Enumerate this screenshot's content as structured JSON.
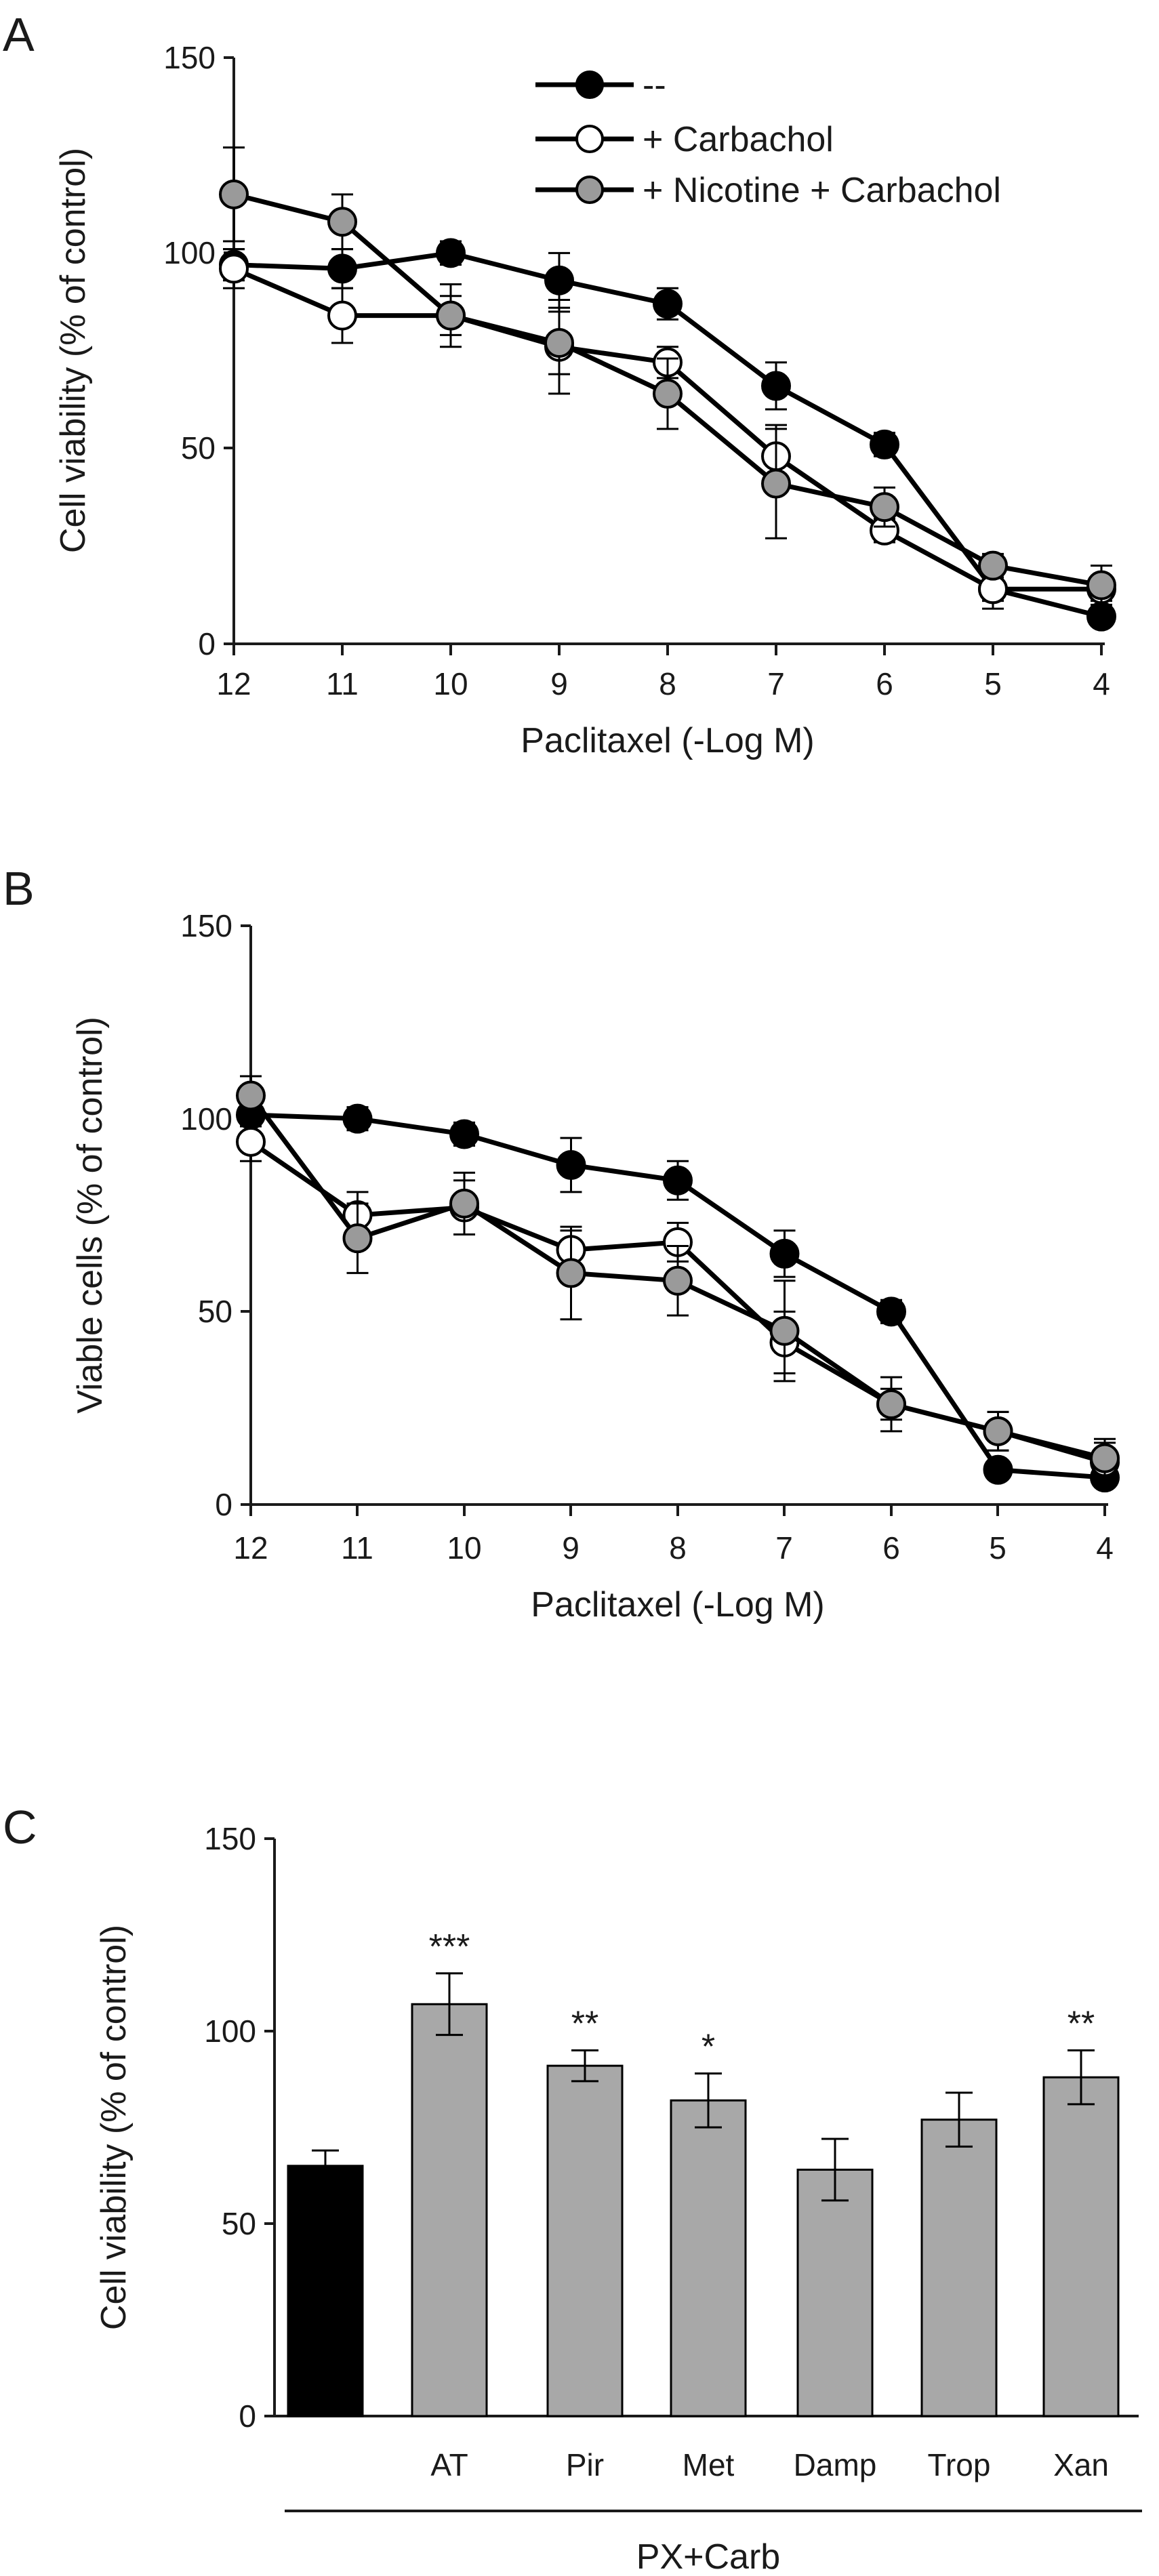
{
  "colors": {
    "black_series": "#000000",
    "white_series": "#ffffff",
    "gray_series": "#9a9a9a",
    "bar_control": "#000000",
    "bar_treated": "#a8a8a8",
    "axis": "#1a1a1a"
  },
  "chart_data": [
    {
      "type": "line",
      "panel": "A",
      "ylabel": "Cell viability (% of control)",
      "xlabel": "Paclitaxel (-Log M)",
      "categories": [
        "12",
        "11",
        "10",
        "9",
        "8",
        "7",
        "6",
        "5",
        "4"
      ],
      "yticks": [
        "0",
        "50",
        "100",
        "150"
      ],
      "ylim": [
        0,
        150
      ],
      "legend": "top-right",
      "series": [
        {
          "name": "--",
          "color": "black_series",
          "values": [
            97,
            96,
            100,
            93,
            87,
            66,
            51,
            14,
            7
          ],
          "errors": [
            4,
            5,
            3,
            7,
            4,
            6,
            3,
            3,
            2
          ]
        },
        {
          "name": "+ Carbachol",
          "color": "white_series",
          "values": [
            96,
            84,
            84,
            76,
            72,
            48,
            29,
            14,
            14
          ],
          "errors": [
            5,
            7,
            8,
            12,
            4,
            8,
            3,
            5,
            3
          ]
        },
        {
          "name": "+ Nicotine + Carbachol",
          "color": "gray_series",
          "values": [
            115,
            108,
            84,
            77,
            64,
            41,
            35,
            20,
            15
          ],
          "errors": [
            12,
            7,
            5,
            8,
            9,
            14,
            5,
            3,
            5
          ]
        }
      ]
    },
    {
      "type": "line",
      "panel": "B",
      "ylabel": "Viable cells (% of control)",
      "xlabel": "Paclitaxel (-Log M)",
      "categories": [
        "12",
        "11",
        "10",
        "9",
        "8",
        "7",
        "6",
        "5",
        "4"
      ],
      "yticks": [
        "0",
        "50",
        "100",
        "150"
      ],
      "ylim": [
        0,
        150
      ],
      "series": [
        {
          "name": "--",
          "color": "black_series",
          "values": [
            101,
            100,
            96,
            88,
            84,
            65,
            50,
            9,
            7
          ],
          "errors": [
            3,
            3,
            3,
            7,
            5,
            6,
            3,
            2,
            2
          ]
        },
        {
          "name": "+ Carbachol",
          "color": "white_series",
          "values": [
            94,
            75,
            77,
            66,
            68,
            42,
            26,
            19,
            11
          ],
          "errors": [
            5,
            6,
            7,
            5,
            5,
            8,
            4,
            5,
            5
          ]
        },
        {
          "name": "+ Nicotine + Carbachol",
          "color": "gray_series",
          "values": [
            106,
            69,
            78,
            60,
            58,
            45,
            26,
            19,
            12
          ],
          "errors": [
            5,
            9,
            8,
            12,
            9,
            13,
            7,
            5,
            5
          ]
        }
      ]
    },
    {
      "type": "bar",
      "panel": "C",
      "ylabel": "Cell viability (% of control)",
      "xlabel": "PX+Carb",
      "categories": [
        "",
        "AT",
        "Pir",
        "Met",
        "Damp",
        "Trop",
        "Xan"
      ],
      "values": [
        65,
        107,
        91,
        82,
        64,
        77,
        88
      ],
      "errors": [
        4,
        8,
        4,
        7,
        8,
        7,
        7
      ],
      "annotations": [
        "",
        "***",
        "**",
        "*",
        "",
        "",
        "**"
      ],
      "yticks": [
        "0",
        "50",
        "100",
        "150"
      ],
      "ylim": [
        0,
        150
      ]
    }
  ]
}
